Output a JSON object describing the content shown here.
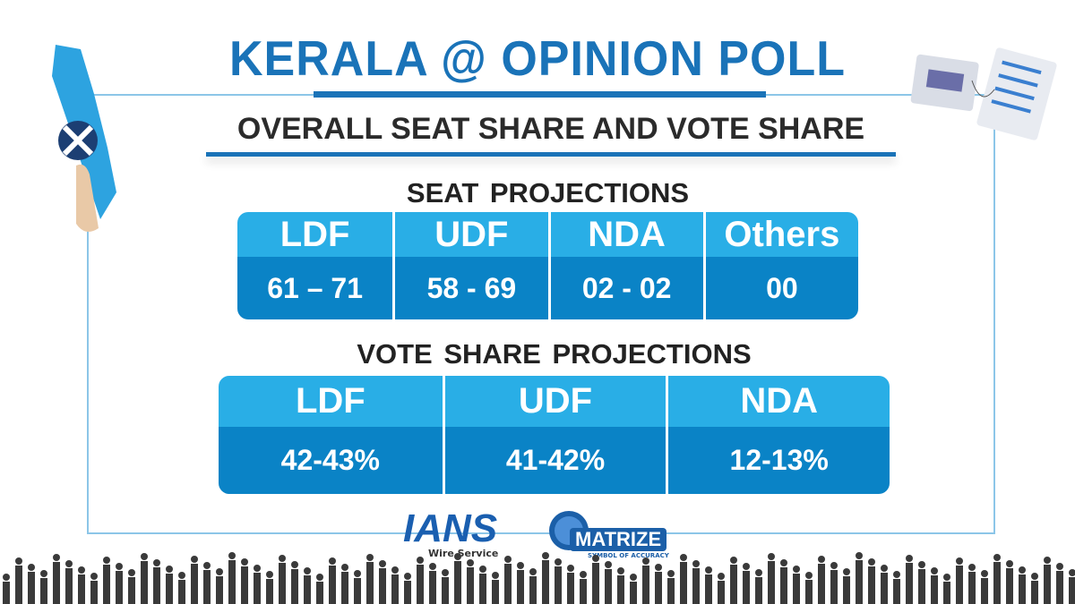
{
  "header": {
    "title": "KERALA @ OPINION POLL",
    "subtitle": "OVERALL SEAT SHARE AND VOTE SHARE"
  },
  "seat_projections": {
    "heading": "SEAT PROJECTIONS",
    "columns": [
      "LDF",
      "UDF",
      "NDA",
      "Others"
    ],
    "values": [
      "61 – 71",
      "58 - 69",
      "02 - 02",
      "00"
    ]
  },
  "vote_share_projections": {
    "heading": "VOTE SHARE PROJECTIONS",
    "columns": [
      "LDF",
      "UDF",
      "NDA"
    ],
    "values": [
      "42-43%",
      "41-42%",
      "12-13%"
    ]
  },
  "logos": {
    "ians": "IANS",
    "ians_tagline": "Wire Service",
    "matrize": "MATRIZE",
    "matrize_tagline": "SYMBOL OF ACCURACY"
  }
}
